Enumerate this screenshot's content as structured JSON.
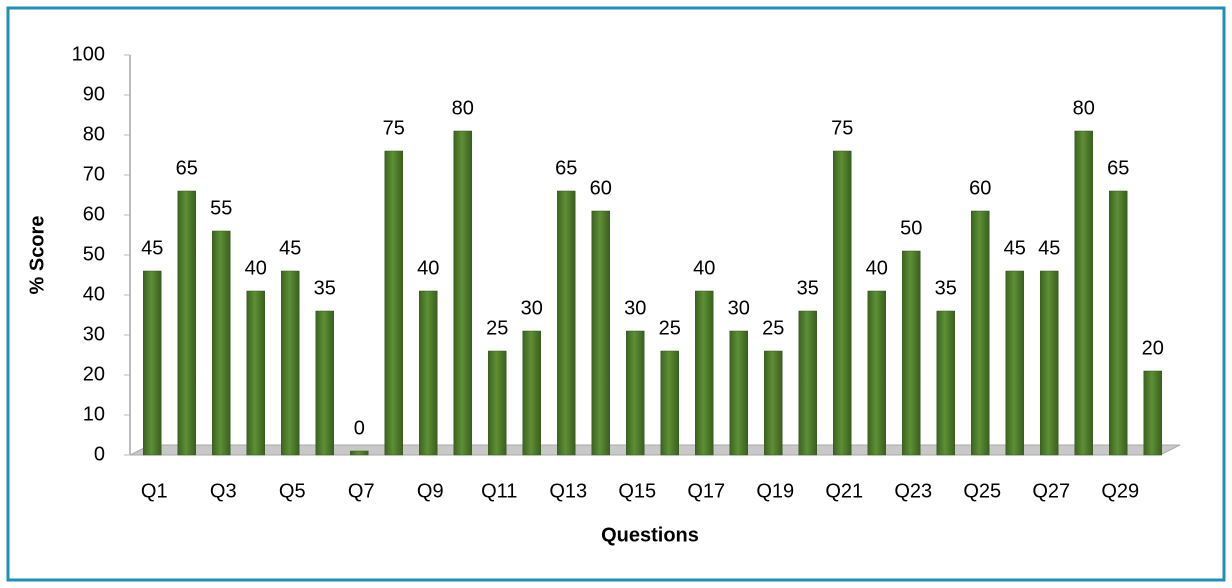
{
  "chart_data": {
    "type": "bar",
    "x_label": "Questions",
    "y_label": "% Score",
    "categories": [
      "Q1",
      null,
      "Q3",
      null,
      "Q5",
      null,
      "Q7",
      null,
      "Q9",
      null,
      "Q11",
      null,
      "Q13",
      null,
      "Q15",
      null,
      "Q17",
      null,
      "Q19",
      null,
      "Q21",
      null,
      "Q23",
      null,
      "Q25",
      null,
      "Q27",
      null,
      "Q29",
      null
    ],
    "values": [
      45,
      65,
      55,
      40,
      45,
      35,
      0,
      75,
      40,
      80,
      25,
      30,
      65,
      60,
      30,
      25,
      40,
      30,
      25,
      35,
      75,
      40,
      50,
      35,
      60,
      45,
      45,
      80,
      65,
      20
    ],
    "color": "#4f7b2c",
    "ylim": [
      0,
      100
    ],
    "yticks": [
      0,
      10,
      20,
      30,
      40,
      50,
      60,
      70,
      80,
      90,
      100
    ],
    "grid": false
  }
}
